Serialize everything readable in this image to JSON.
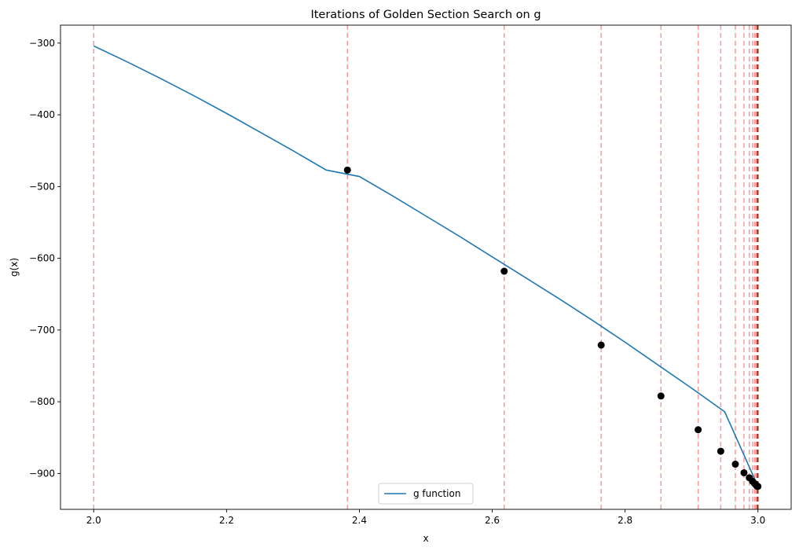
{
  "chart_data": {
    "type": "line",
    "title": "Iterations of Golden Section Search on g",
    "xlabel": "x",
    "ylabel": "g(x)",
    "xlim": [
      1.95,
      3.05
    ],
    "ylim": [
      -950,
      -275
    ],
    "xticks": [
      2.0,
      2.2,
      2.4,
      2.6,
      2.8,
      3.0
    ],
    "xtick_labels": [
      "2.0",
      "2.2",
      "2.4",
      "2.6",
      "2.8",
      "3.0"
    ],
    "yticks": [
      -300,
      -400,
      -500,
      -600,
      -700,
      -800,
      -900
    ],
    "ytick_labels": [
      "−300",
      "−400",
      "−500",
      "−600",
      "−700",
      "−800",
      "−900"
    ],
    "grid": false,
    "legend": {
      "placement": "lower center",
      "entries": [
        "g function"
      ]
    },
    "series": [
      {
        "name": "g function",
        "color": "#1f77b4",
        "x": [
          2.0,
          2.05,
          2.1,
          2.15,
          2.2,
          2.25,
          2.3,
          2.35,
          2.4,
          2.45,
          2.5,
          2.55,
          2.6,
          2.65,
          2.7,
          2.75,
          2.8,
          2.85,
          2.9,
          2.95,
          3.0
        ],
        "y": [
          -304,
          -326,
          -349,
          -373,
          -398,
          -424,
          -450,
          -477,
          -486,
          -513,
          -541,
          -569,
          -598,
          -627,
          -656,
          -686,
          -717,
          -749,
          -781,
          -814,
          -918
        ]
      }
    ],
    "iteration_points": {
      "color": "#000000",
      "x": [
        2.382,
        2.618,
        2.764,
        2.854,
        2.91,
        2.944,
        2.966,
        2.979,
        2.987,
        2.992,
        2.995,
        2.997,
        2.998,
        2.999,
        3.0
      ],
      "y": [
        -477,
        -618,
        -721,
        -792,
        -839,
        -869,
        -887,
        -899,
        -906,
        -911,
        -914,
        -916,
        -917,
        -918,
        -918
      ]
    },
    "iteration_lines": {
      "color": "#ff9999",
      "dark_color": "#8b2a10",
      "style": "dashed",
      "x": [
        2.0,
        2.382,
        2.618,
        2.764,
        2.854,
        2.91,
        2.944,
        2.966,
        2.979,
        2.987,
        2.992,
        2.995,
        2.997,
        2.998,
        2.9988,
        2.9993,
        2.9996,
        2.9998,
        2.9999,
        3.0
      ]
    }
  }
}
